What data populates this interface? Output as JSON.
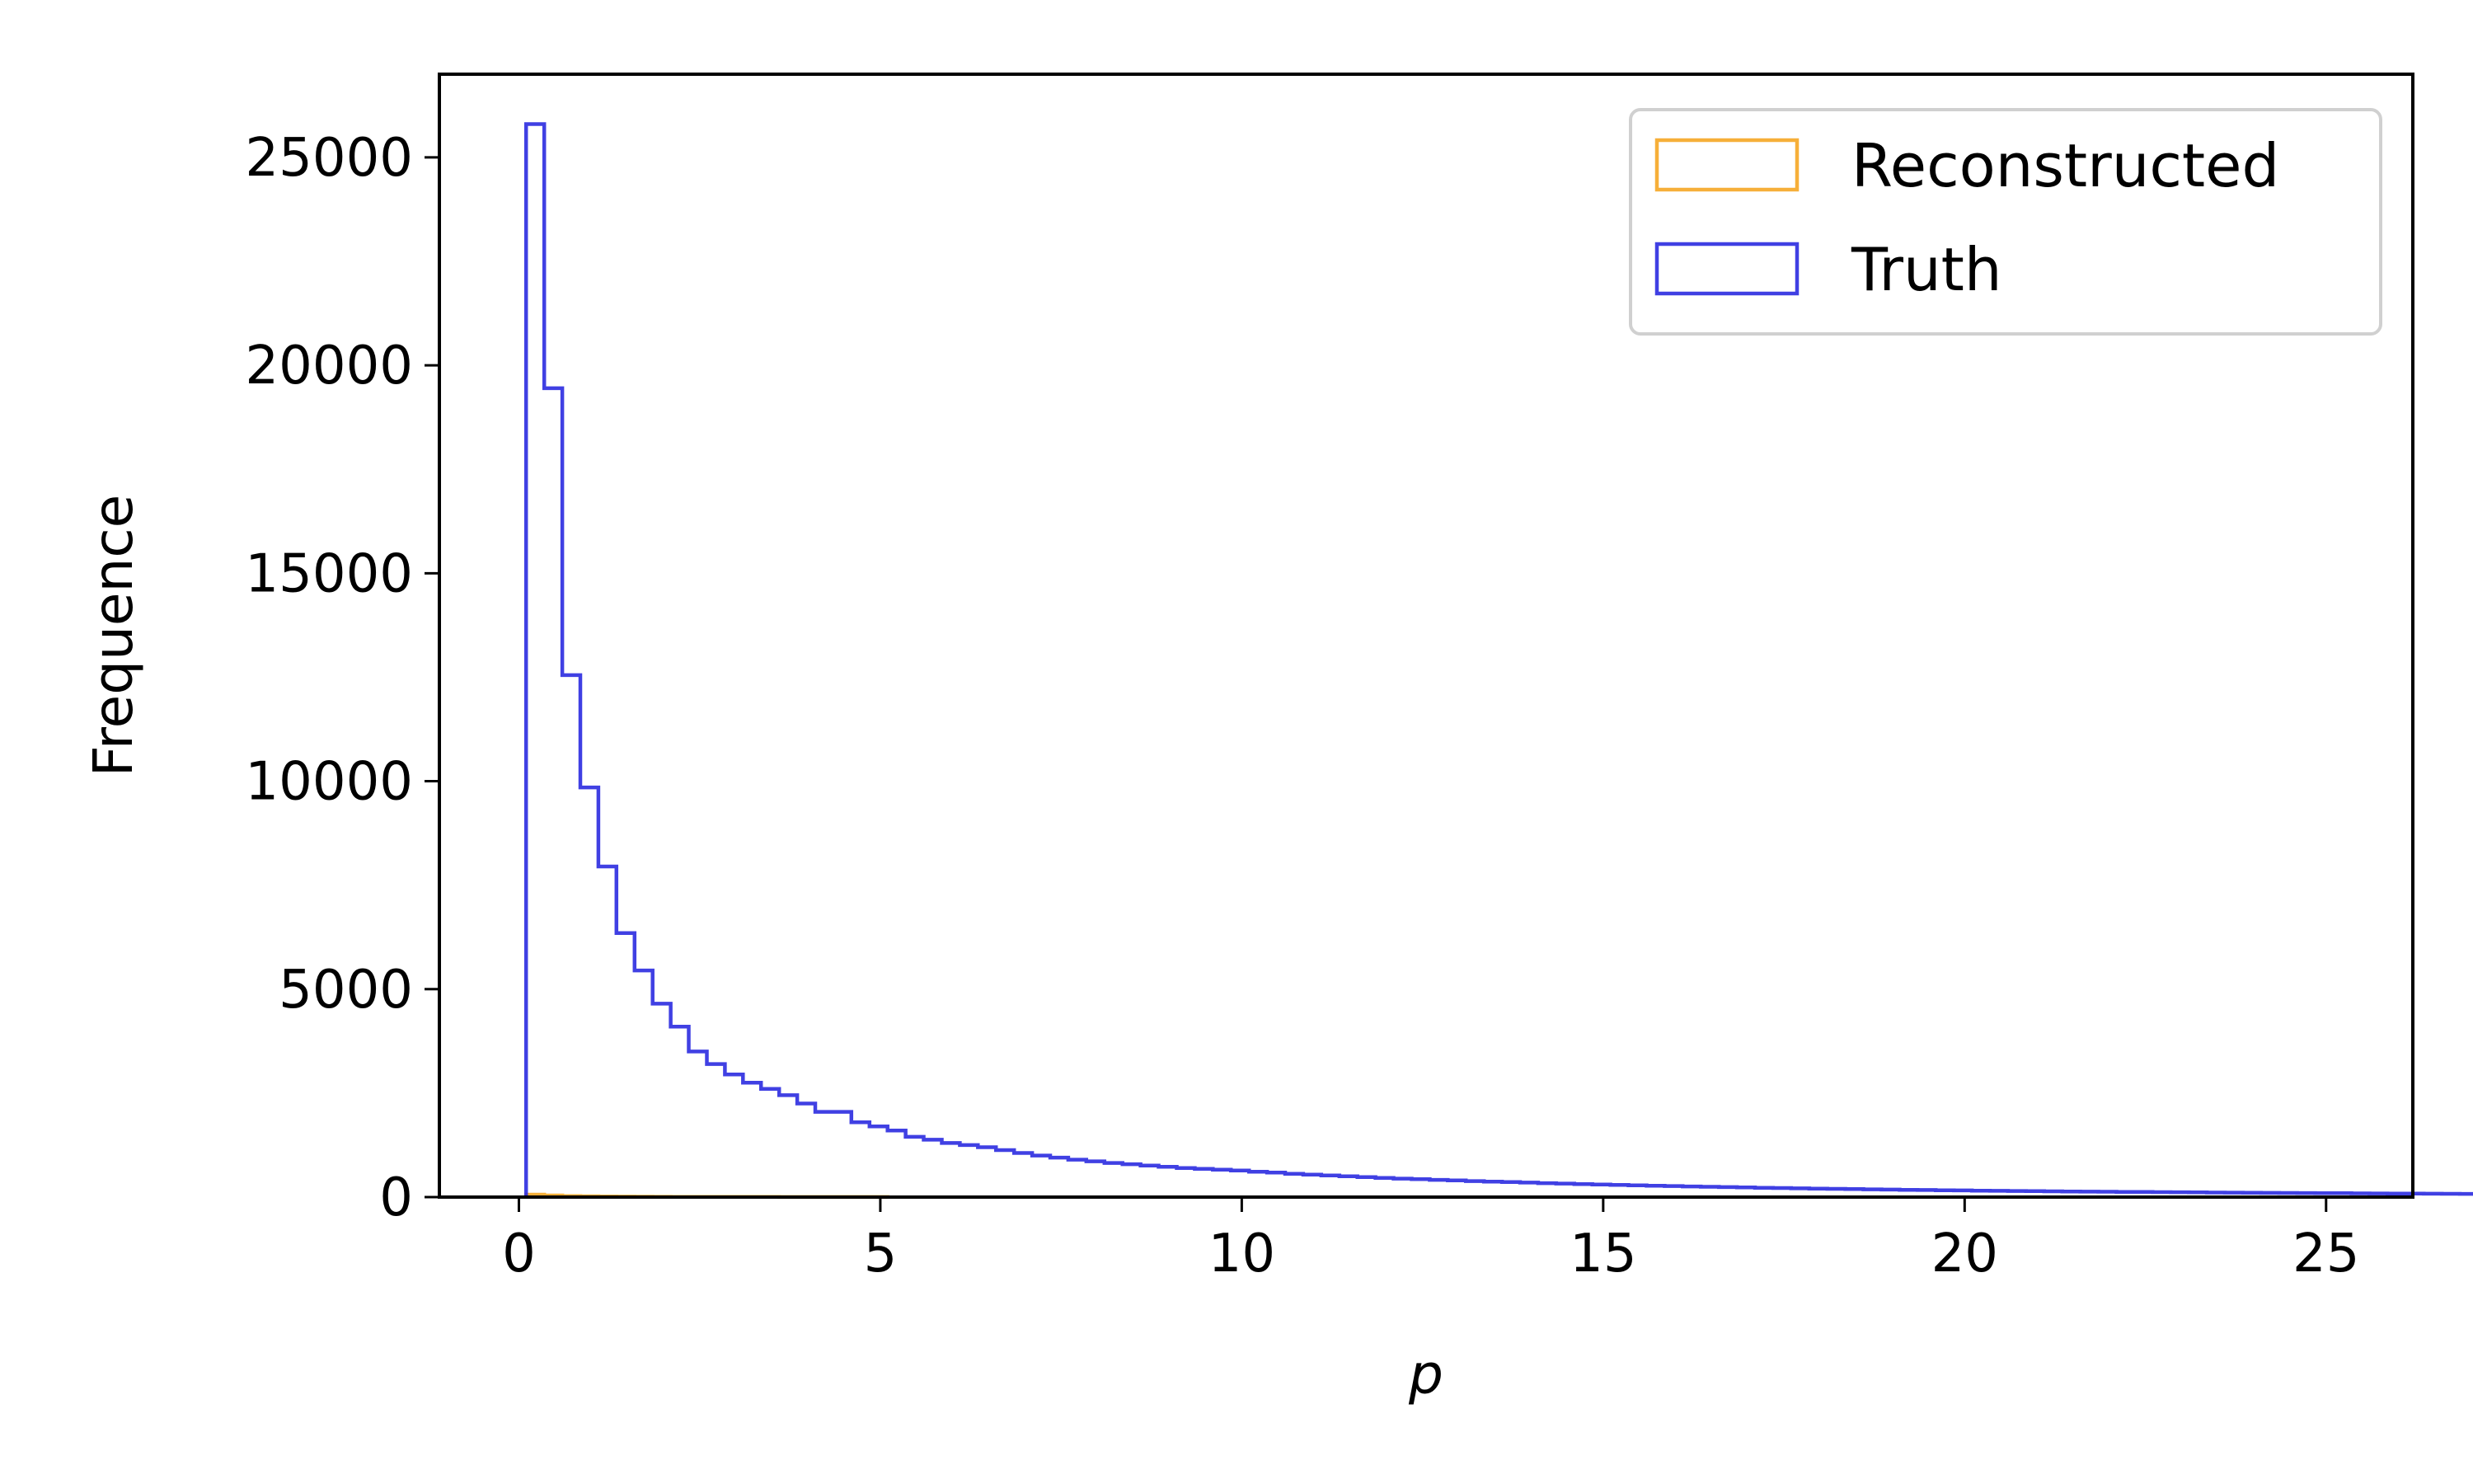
{
  "chart_data": {
    "type": "histogram",
    "title": "",
    "xlabel": "p",
    "ylabel": "Frequence",
    "xlim": [
      -1.1,
      26.2
    ],
    "ylim": [
      0,
      27000
    ],
    "xticks": [
      0,
      5,
      10,
      15,
      20,
      25
    ],
    "yticks": [
      0,
      5000,
      10000,
      15000,
      20000,
      25000
    ],
    "grid": false,
    "legend_position": "top-right",
    "bins": {
      "start": 0.1,
      "width": 0.25
    },
    "series": [
      {
        "name": "Reconstructed",
        "color": "#f5a623",
        "counts": [
          60,
          40,
          25,
          20,
          15,
          12,
          10,
          8,
          6,
          5,
          4,
          4,
          3,
          3,
          2,
          2,
          2,
          2,
          1,
          1
        ]
      },
      {
        "name": "Truth",
        "color": "#2b2be0",
        "counts": [
          25800,
          19450,
          12550,
          9850,
          7950,
          6350,
          5450,
          4650,
          4100,
          3500,
          3200,
          2950,
          2750,
          2600,
          2450,
          2250,
          2050,
          2050,
          1800,
          1700,
          1600,
          1450,
          1380,
          1300,
          1250,
          1200,
          1130,
          1060,
          1000,
          950,
          900,
          860,
          820,
          790,
          760,
          730,
          700,
          680,
          660,
          640,
          610,
          590,
          560,
          540,
          520,
          500,
          480,
          460,
          445,
          430,
          415,
          400,
          385,
          372,
          360,
          348,
          336,
          325,
          314,
          303,
          293,
          283,
          274,
          265,
          256,
          248,
          240,
          232,
          225,
          218,
          211,
          204,
          198,
          192,
          186,
          180,
          175,
          170,
          165,
          160,
          155,
          151,
          147,
          143,
          139,
          135,
          131,
          128,
          125,
          122,
          119,
          116,
          113,
          110,
          107,
          105,
          102,
          100,
          97,
          95,
          93,
          90,
          88,
          86,
          84,
          82,
          80,
          78,
          76,
          75,
          73,
          71,
          70,
          68,
          66,
          65,
          63,
          62,
          60,
          59,
          58,
          56,
          55,
          54,
          53,
          52,
          50,
          49,
          48,
          47,
          46,
          45,
          44,
          43,
          42,
          41,
          41,
          40,
          39,
          38,
          38,
          37,
          36,
          35,
          35,
          34,
          33,
          33,
          32,
          31,
          31,
          30,
          30,
          29,
          28,
          28,
          27,
          27,
          26,
          26,
          25,
          25,
          24,
          24,
          23,
          23,
          22,
          22,
          22,
          21,
          21,
          20,
          20,
          20,
          19,
          19,
          19,
          18,
          18,
          18,
          17,
          17,
          17,
          16,
          16,
          16,
          15,
          15,
          15,
          15,
          14,
          14,
          14,
          14,
          13,
          13,
          13,
          13,
          12,
          12,
          12,
          12,
          11,
          11,
          11,
          11,
          11,
          10,
          10,
          10,
          10,
          10,
          9,
          9,
          9,
          9,
          9,
          9,
          8,
          8,
          8,
          8,
          8,
          8,
          8,
          7,
          7,
          7,
          7,
          7,
          7,
          7,
          7,
          6,
          6,
          6,
          6,
          6,
          6,
          6,
          6,
          6,
          5,
          5,
          5,
          5,
          5,
          5,
          5,
          5,
          5,
          5,
          5,
          4,
          4,
          4,
          4,
          4,
          4,
          4,
          4,
          4,
          4,
          4,
          4,
          4,
          4,
          3,
          3,
          3,
          3,
          3,
          3,
          3,
          3,
          3,
          3,
          3,
          3,
          3,
          3,
          3,
          3,
          3,
          3,
          3,
          3,
          2,
          2,
          2,
          2,
          2,
          2,
          2,
          2,
          2,
          2,
          2,
          2,
          2,
          2,
          2,
          2,
          2,
          2,
          2,
          2,
          2,
          2,
          2,
          2,
          2,
          2,
          2,
          2,
          2,
          2,
          2,
          2,
          1,
          1,
          1,
          1,
          1,
          1,
          1,
          1,
          1,
          1,
          1,
          1,
          1,
          1,
          1,
          1,
          1,
          1,
          1,
          1,
          1,
          1,
          1,
          1,
          1,
          1,
          1,
          1,
          1,
          1,
          1,
          1,
          1,
          1,
          1,
          1,
          1,
          1,
          1,
          1,
          1,
          1
        ]
      }
    ]
  }
}
